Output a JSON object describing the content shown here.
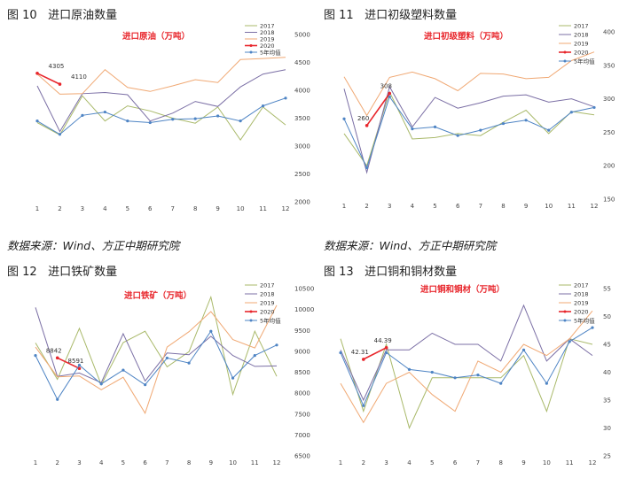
{
  "figures": [
    {
      "label": "图 10",
      "title": "进口原油数量"
    },
    {
      "label": "图 11",
      "title": "进口初级塑料数量"
    },
    {
      "label": "图 12",
      "title": "进口铁矿数量"
    },
    {
      "label": "图 13",
      "title": "进口铜和铜材数量"
    }
  ],
  "sources": [
    "数据来源：Wind、方正中期研究院",
    "数据来源：Wind、方正中期研究院"
  ],
  "chart_data": [
    {
      "type": "line",
      "title": "进口原油（万吨）",
      "x": [
        1,
        2,
        3,
        4,
        5,
        6,
        7,
        8,
        9,
        10,
        11,
        12
      ],
      "ylim": [
        2000,
        5000
      ],
      "yticks": [
        2000,
        2500,
        3000,
        3500,
        4000,
        4500,
        5000
      ],
      "y_axis_side": "right",
      "grid": false,
      "legend_position": "top-right",
      "series": [
        {
          "name": "2017",
          "color": "#a9b96a",
          "values": [
            3420,
            3200,
            3900,
            3450,
            3720,
            3630,
            3500,
            3410,
            3700,
            3110,
            3700,
            3380
          ]
        },
        {
          "name": "2018",
          "color": "#7b6fa5",
          "values": [
            4080,
            3260,
            3940,
            3960,
            3920,
            3450,
            3590,
            3800,
            3710,
            4060,
            4290,
            4370
          ]
        },
        {
          "name": "2019",
          "color": "#f0a873",
          "values": [
            4290,
            3930,
            3940,
            4370,
            4050,
            3980,
            4080,
            4190,
            4140,
            4550,
            4570,
            4590
          ]
        },
        {
          "name": "2020",
          "color": "#e8262c",
          "values": [
            4305,
            4110,
            null,
            null,
            null,
            null,
            null,
            null,
            null,
            null,
            null,
            null
          ]
        },
        {
          "name": "5年均值",
          "color": "#4e84c4",
          "values": [
            3450,
            3210,
            3550,
            3610,
            3450,
            3420,
            3480,
            3490,
            3540,
            3450,
            3720,
            3860
          ]
        }
      ],
      "annotations": [
        {
          "x": 2,
          "y": 4305,
          "text": "4305"
        },
        {
          "x": 3,
          "y": 4110,
          "text": "4110"
        }
      ]
    },
    {
      "type": "line",
      "title": "进口初级塑料（万吨）",
      "x": [
        1,
        2,
        3,
        4,
        5,
        6,
        7,
        8,
        9,
        10,
        11,
        12
      ],
      "ylim": [
        150,
        400
      ],
      "yticks": [
        150,
        200,
        250,
        300,
        350,
        400
      ],
      "y_axis_side": "right",
      "grid": false,
      "legend_position": "top-right",
      "series": [
        {
          "name": "2017",
          "color": "#a9b96a",
          "values": [
            248,
            200,
            310,
            240,
            242,
            248,
            245,
            265,
            283,
            248,
            281,
            276
          ]
        },
        {
          "name": "2018",
          "color": "#7b6fa5",
          "values": [
            315,
            190,
            318,
            258,
            302,
            286,
            294,
            304,
            306,
            295,
            300,
            288
          ]
        },
        {
          "name": "2019",
          "color": "#f0a873",
          "values": [
            333,
            275,
            332,
            340,
            330,
            312,
            338,
            337,
            330,
            332,
            357,
            370
          ]
        },
        {
          "name": "2020",
          "color": "#e8262c",
          "values": [
            null,
            260,
            308,
            null,
            null,
            null,
            null,
            null,
            null,
            null,
            null,
            null
          ]
        },
        {
          "name": "5年均值",
          "color": "#4e84c4",
          "values": [
            270,
            197,
            303,
            255,
            258,
            245,
            253,
            263,
            268,
            253,
            280,
            287
          ]
        }
      ],
      "annotations": [
        {
          "x": 2,
          "y": 260,
          "text": "260"
        },
        {
          "x": 3,
          "y": 308,
          "text": "308"
        }
      ]
    },
    {
      "type": "line",
      "title": "进口铁矿（万吨）",
      "x": [
        1,
        2,
        3,
        4,
        5,
        6,
        7,
        8,
        9,
        10,
        11,
        12
      ],
      "ylim": [
        6500,
        10500
      ],
      "yticks": [
        6500,
        7000,
        7500,
        8000,
        8500,
        9000,
        9500,
        10000,
        10500
      ],
      "y_axis_side": "right",
      "grid": false,
      "legend_position": "top-right",
      "series": [
        {
          "name": "2017",
          "color": "#a9b96a",
          "values": [
            9200,
            8330,
            9550,
            8200,
            9210,
            9480,
            8630,
            8990,
            10300,
            7970,
            9480,
            8400
          ]
        },
        {
          "name": "2018",
          "color": "#7b6fa5",
          "values": [
            10050,
            8400,
            8480,
            8250,
            9420,
            8290,
            8960,
            8920,
            9360,
            8900,
            8640,
            8650
          ]
        },
        {
          "name": "2019",
          "color": "#f0a873",
          "values": [
            9100,
            8390,
            8410,
            8080,
            8380,
            7520,
            9100,
            9470,
            9950,
            9280,
            9080,
            10100
          ]
        },
        {
          "name": "2020",
          "color": "#e8262c",
          "values": [
            null,
            8842,
            8591,
            null,
            null,
            null,
            null,
            null,
            null,
            null,
            null,
            null
          ]
        },
        {
          "name": "5年均值",
          "color": "#4e84c4",
          "values": [
            8900,
            7850,
            8670,
            8220,
            8550,
            8200,
            8840,
            8720,
            9480,
            8360,
            8900,
            9150
          ]
        }
      ],
      "annotations": [
        {
          "x": 2,
          "y": 8842,
          "text": "8842"
        },
        {
          "x": 3,
          "y": 8591,
          "text": "8591"
        }
      ]
    },
    {
      "type": "line",
      "title": "进口铜和铜材（万吨）",
      "x": [
        1,
        2,
        3,
        4,
        5,
        6,
        7,
        8,
        9,
        10,
        11,
        12
      ],
      "ylim": [
        25,
        55
      ],
      "yticks": [
        25,
        30,
        35,
        40,
        45,
        50,
        55
      ],
      "y_axis_side": "right",
      "grid": false,
      "legend_position": "top-right",
      "series": [
        {
          "name": "2017",
          "color": "#a9b96a",
          "values": [
            46,
            33,
            45,
            30,
            39,
            39,
            39,
            39,
            43,
            33,
            46,
            45
          ]
        },
        {
          "name": "2018",
          "color": "#7b6fa5",
          "values": [
            44,
            35,
            44,
            44,
            47,
            45,
            45,
            42,
            52,
            42,
            46,
            43
          ]
        },
        {
          "name": "2019",
          "color": "#f0a873",
          "values": [
            38,
            31,
            38,
            40,
            36,
            33,
            42,
            40,
            45,
            43,
            46,
            51
          ]
        },
        {
          "name": "2020",
          "color": "#e8262c",
          "values": [
            null,
            42.31,
            44.39,
            null,
            null,
            null,
            null,
            null,
            null,
            null,
            null,
            null
          ]
        },
        {
          "name": "5年均值",
          "color": "#4e84c4",
          "values": [
            43.5,
            34,
            43.5,
            40.5,
            40,
            39,
            39.5,
            38,
            44,
            38,
            45.5,
            48
          ]
        }
      ],
      "annotations": [
        {
          "x": 2,
          "y": 42.31,
          "text": "42.31"
        },
        {
          "x": 3,
          "y": 44.39,
          "text": "44.39"
        }
      ]
    }
  ]
}
